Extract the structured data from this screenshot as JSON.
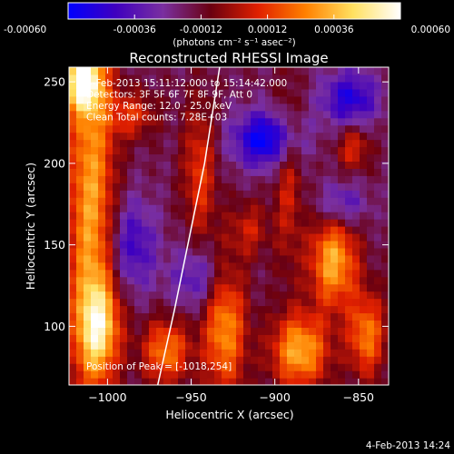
{
  "chart_data": {
    "type": "heatmap",
    "title": "Reconstructed RHESSI Image",
    "xlabel": "Heliocentric X (arcsec)",
    "ylabel": "Heliocentric Y (arcsec)",
    "xlim": [
      -1023,
      -832
    ],
    "ylim": [
      64,
      259
    ],
    "x_ticks": [
      -1000,
      -950,
      -900,
      -850
    ],
    "y_ticks": [
      100,
      150,
      200,
      250
    ],
    "colorbar": {
      "ticks": [
        -0.0006,
        -0.00036,
        -0.00012,
        0.00012,
        0.00036,
        0.0006
      ],
      "tick_labels": [
        "-0.00060",
        "-0.00036",
        "-0.00012",
        "0.00012",
        "0.00036",
        "0.00060"
      ],
      "units": "(photons cm⁻² s⁻¹ asec⁻²)",
      "range": [
        -0.0006,
        0.0006
      ],
      "stops": [
        "#0000ff",
        "#3f00bf",
        "#7a2fa0",
        "#6a0010",
        "#e02000",
        "#ff8000",
        "#ffe060",
        "#ffffff"
      ]
    },
    "annotations": [
      "4-Feb-2013 15:11:12.000 to 15:14:42.000",
      "Detectors: 3F 5F 6F 7F 8F 9F, Att 0",
      "Energy Range: 12.0 - 25.0 keV",
      "Clean     Total counts: 7.28E+03"
    ],
    "peak_label": "Position of Peak = [-1018,254]",
    "peak": [
      -1018,
      254
    ],
    "limb_curve": [
      [
        -970,
        64
      ],
      [
        -960,
        110
      ],
      [
        -950,
        160
      ],
      [
        -942,
        200
      ],
      [
        -933,
        259
      ]
    ],
    "bright_features": [
      {
        "x": -1010,
        "y": 175,
        "sx": 10,
        "sy": 90,
        "v": 0.00048
      },
      {
        "x": -1015,
        "y": 250,
        "sx": 8,
        "sy": 12,
        "v": 0.0006
      },
      {
        "x": -1005,
        "y": 100,
        "sx": 9,
        "sy": 20,
        "v": 0.00045
      },
      {
        "x": -965,
        "y": 85,
        "sx": 10,
        "sy": 14,
        "v": 0.0004
      },
      {
        "x": -985,
        "y": 230,
        "sx": 10,
        "sy": 10,
        "v": 0.00025
      },
      {
        "x": -945,
        "y": 195,
        "sx": 7,
        "sy": 30,
        "v": 0.00028
      },
      {
        "x": -930,
        "y": 100,
        "sx": 9,
        "sy": 30,
        "v": 0.00045
      },
      {
        "x": -915,
        "y": 160,
        "sx": 8,
        "sy": 12,
        "v": 0.0002
      },
      {
        "x": -892,
        "y": 190,
        "sx": 6,
        "sy": 40,
        "v": 0.00022
      },
      {
        "x": -885,
        "y": 85,
        "sx": 12,
        "sy": 16,
        "v": 0.0005
      },
      {
        "x": -865,
        "y": 140,
        "sx": 10,
        "sy": 20,
        "v": 0.0005
      },
      {
        "x": -845,
        "y": 95,
        "sx": 8,
        "sy": 18,
        "v": 0.0004
      },
      {
        "x": -853,
        "y": 210,
        "sx": 7,
        "sy": 10,
        "v": 0.00025
      }
    ],
    "dark_features": [
      {
        "x": -905,
        "y": 215,
        "sx": 14,
        "sy": 12,
        "v": -0.00045
      },
      {
        "x": -855,
        "y": 240,
        "sx": 12,
        "sy": 12,
        "v": -0.00035
      },
      {
        "x": -945,
        "y": 130,
        "sx": 12,
        "sy": 14,
        "v": -0.00025
      },
      {
        "x": -985,
        "y": 150,
        "sx": 10,
        "sy": 20,
        "v": -0.00028
      },
      {
        "x": -860,
        "y": 175,
        "sx": 10,
        "sy": 10,
        "v": -0.00025
      }
    ]
  },
  "footer_date": "4-Feb-2013 14:24"
}
